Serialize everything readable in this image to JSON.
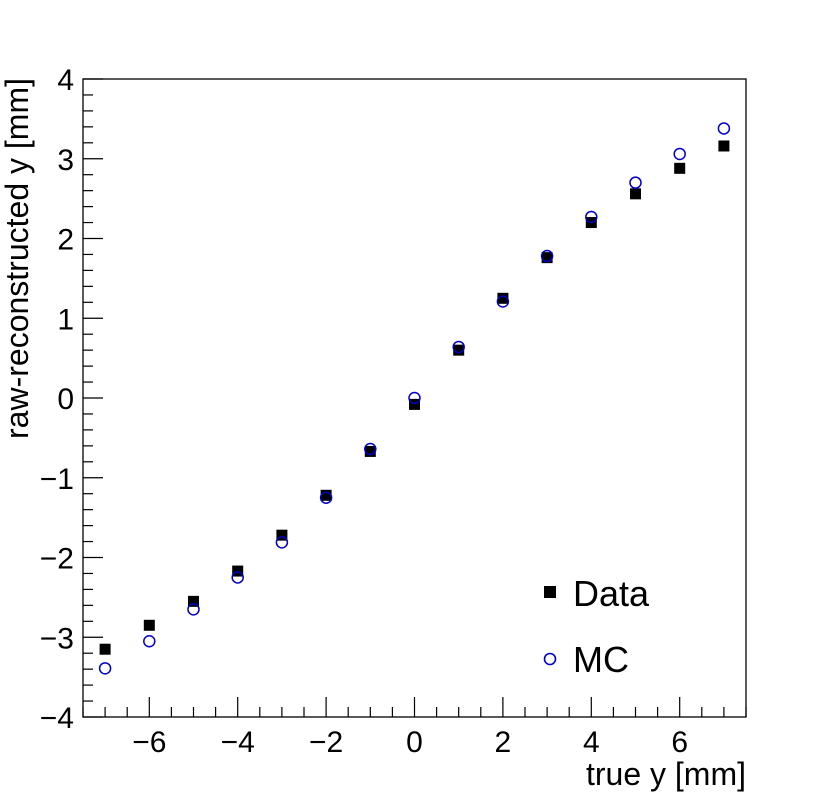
{
  "chart_data": {
    "type": "scatter",
    "xlabel": "true y [mm]",
    "ylabel": "raw-reconstructed y [mm]",
    "xlim": [
      -7.5,
      7.5
    ],
    "ylim": [
      -4,
      4
    ],
    "x_major_ticks": [
      -6,
      -4,
      -2,
      0,
      2,
      4,
      6
    ],
    "x_tick_labels": [
      "−6",
      "−4",
      "−2",
      "0",
      "2",
      "4",
      "6"
    ],
    "y_major_ticks": [
      -4,
      -3,
      -2,
      -1,
      0,
      1,
      2,
      3,
      4
    ],
    "y_tick_labels": [
      "−4",
      "−3",
      "−2",
      "−1",
      "0",
      "1",
      "2",
      "3",
      "4"
    ],
    "legend_position": "bottom-right",
    "series": [
      {
        "name": "Data",
        "marker": "filled-square",
        "color": "#000000",
        "x": [
          -7,
          -6,
          -5,
          -4,
          -3,
          -2,
          -1,
          0,
          1,
          2,
          3,
          4,
          5,
          6,
          7
        ],
        "y": [
          -3.15,
          -2.85,
          -2.55,
          -2.17,
          -1.72,
          -1.22,
          -0.67,
          -0.08,
          0.6,
          1.25,
          1.76,
          2.2,
          2.56,
          2.88,
          3.16
        ]
      },
      {
        "name": "MC",
        "marker": "open-circle",
        "color": "#0000cc",
        "x": [
          -7,
          -6,
          -5,
          -4,
          -3,
          -2,
          -1,
          0,
          1,
          2,
          3,
          4,
          5,
          6,
          7
        ],
        "y": [
          -3.39,
          -3.05,
          -2.65,
          -2.25,
          -1.81,
          -1.25,
          -0.64,
          0.0,
          0.64,
          1.21,
          1.78,
          2.27,
          2.7,
          3.06,
          3.38
        ]
      }
    ]
  }
}
